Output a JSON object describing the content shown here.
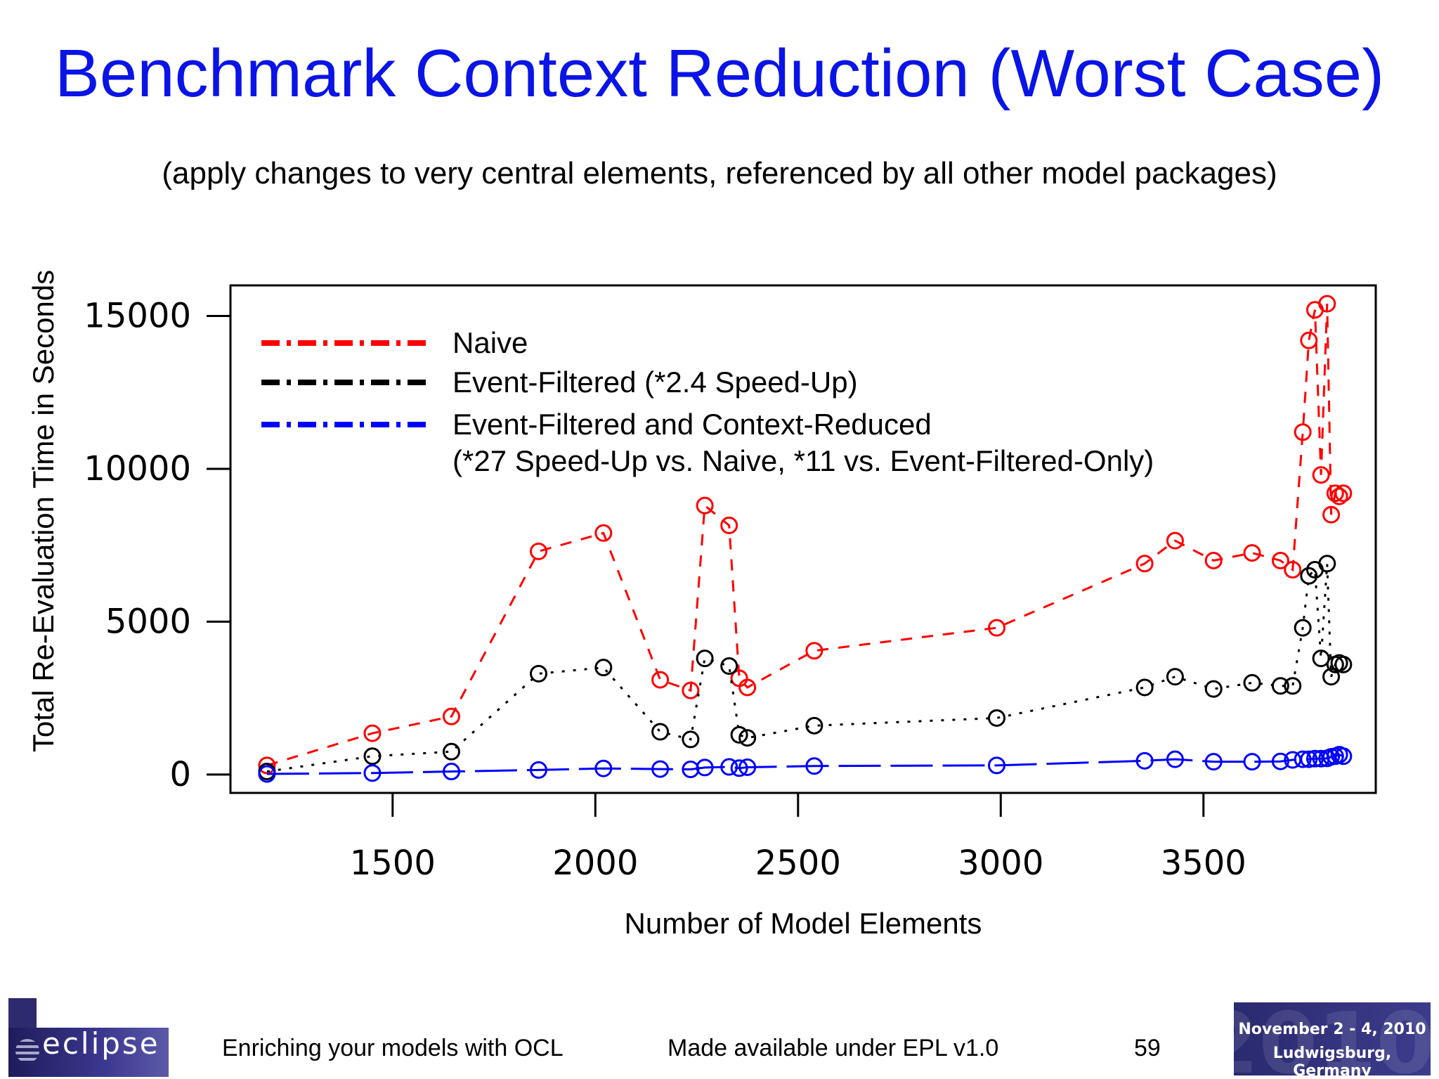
{
  "slide": {
    "title": "Benchmark Context Reduction (Worst Case)",
    "subtitle": "(apply changes to very central elements, referenced by all other model packages)"
  },
  "footer": {
    "left_text": "Enriching your models with OCL",
    "center_text": "Made available under EPL v1.0",
    "page_number": "59",
    "logo_left_text": "eclipse",
    "event_line1": "November 2 - 4, 2010",
    "event_line2": "Ludwigsburg, Germany",
    "event_year": "2010"
  },
  "chart_data": {
    "type": "scatter",
    "xlabel": "Number of Model Elements",
    "ylabel": "Total Re-Evaluation Time in Seconds",
    "xlim": [
      1100,
      3925
    ],
    "ylim": [
      -600,
      16000
    ],
    "xticks": [
      1500,
      2000,
      2500,
      3000,
      3500
    ],
    "yticks": [
      0,
      5000,
      10000,
      15000
    ],
    "legend_position": "top-left",
    "grid": false,
    "x": [
      1190,
      1450,
      1645,
      1860,
      2020,
      2160,
      2235,
      2270,
      2330,
      2355,
      2375,
      2540,
      2990,
      3355,
      3430,
      3525,
      3620,
      3690,
      3720,
      3745,
      3760,
      3775,
      3790,
      3805,
      3815,
      3825,
      3835,
      3845
    ],
    "series": [
      {
        "name": "Naive",
        "color": "#ff0000",
        "values": [
          300,
          1350,
          1900,
          7300,
          7900,
          3100,
          2750,
          8800,
          8150,
          3150,
          2850,
          4050,
          4800,
          6900,
          7650,
          7000,
          7250,
          7000,
          6700,
          11200,
          14200,
          15200,
          9800,
          15400,
          8500,
          9200,
          9100,
          9200
        ]
      },
      {
        "name": "Event-Filtered (*2.4 Speed-Up)",
        "color": "#000000",
        "values": [
          100,
          600,
          750,
          3300,
          3500,
          1400,
          1150,
          3800,
          3550,
          1300,
          1200,
          1600,
          1850,
          2850,
          3200,
          2800,
          3000,
          2900,
          2900,
          4800,
          6500,
          6700,
          3800,
          6900,
          3200,
          3600,
          3650,
          3600
        ]
      },
      {
        "name": "Event-Filtered and Context-Reduced",
        "name_line2": "(*27 Speed-Up vs. Naive, *11 vs. Event-Filtered-Only)",
        "color": "#0000ff",
        "values": [
          20,
          50,
          100,
          150,
          200,
          180,
          170,
          230,
          250,
          210,
          240,
          280,
          300,
          450,
          500,
          420,
          420,
          430,
          480,
          500,
          500,
          520,
          520,
          530,
          580,
          600,
          650,
          600
        ]
      }
    ]
  }
}
